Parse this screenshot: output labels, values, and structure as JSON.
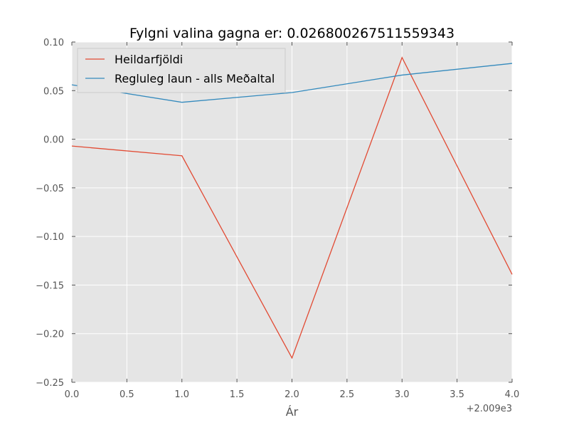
{
  "chart_data": {
    "type": "line",
    "title": "Fylgni valina gagna er: 0.026800267511559343",
    "xlabel": "Ár",
    "ylabel": "",
    "x_offset_label": "+2.009e3",
    "x": [
      0,
      1,
      2,
      3,
      4
    ],
    "xlim": [
      0,
      4
    ],
    "ylim": [
      -0.25,
      0.1
    ],
    "xticks": [
      "0.0",
      "0.5",
      "1.0",
      "1.5",
      "2.0",
      "2.5",
      "3.0",
      "3.5",
      "4.0"
    ],
    "yticks": [
      "0.10",
      "0.05",
      "0.00",
      "−0.05",
      "−0.10",
      "−0.15",
      "−0.20",
      "−0.25"
    ],
    "grid": true,
    "legend_position": "top-left",
    "series": [
      {
        "name": "Heildarfjöldi",
        "color": "#E24A33",
        "values": [
          -0.007,
          -0.017,
          -0.225,
          0.084,
          -0.139
        ]
      },
      {
        "name": "Regluleg laun - alls Meðaltal",
        "color": "#348ABD",
        "values": [
          0.056,
          0.038,
          0.048,
          0.066,
          0.078
        ]
      }
    ]
  }
}
